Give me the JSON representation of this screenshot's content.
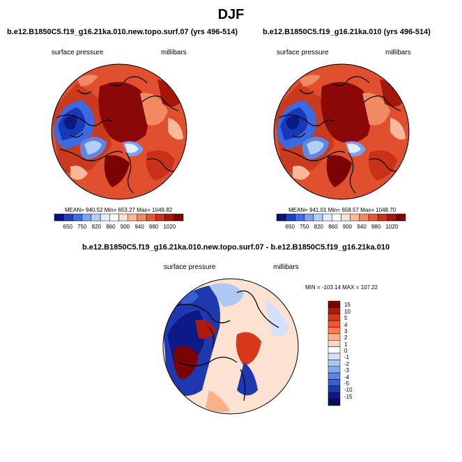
{
  "page": {
    "title": "DJF"
  },
  "panels": [
    {
      "title": "b.e12.B1850C5.f19_g16.21ka.010.new.topo.surf.07 (yrs 496-514)",
      "left_label": "surface pressure",
      "right_label": "millibars",
      "stats": "MEAN= 940.52  Min= 653.27  Max= 1049.82"
    },
    {
      "title": "b.e12.B1850C5.f19_g16.21ka.010 (yrs 496-514)",
      "left_label": "surface pressure",
      "right_label": "millibars",
      "stats": "MEAN= 941.01  Min= 658.57  Max= 1048.70"
    },
    {
      "title": "b.e12.B1850C5.f19_g16.21ka.010.new.topo.surf.07 - b.e12.B1850C5.f19_g16.21ka.010",
      "left_label": "surface pressure",
      "right_label": "millibars",
      "stats": "MIN = -103.14 MAX = 107.22"
    }
  ],
  "colorbar_top": {
    "labels": [
      "650",
      "750",
      "820",
      "860",
      "900",
      "940",
      "980",
      "1020"
    ],
    "colors": [
      "#08127a",
      "#1f3fbf",
      "#3f6fe0",
      "#7aa2ee",
      "#b4cdf6",
      "#e2ecfb",
      "#ffffff",
      "#fde2d2",
      "#f9b899",
      "#f08a62",
      "#e25a35",
      "#c9311a",
      "#a3160a",
      "#7a0303"
    ]
  },
  "colorbar_diff": {
    "labels": [
      "15",
      "10",
      "5",
      "4",
      "3",
      "2",
      "1",
      "0",
      "-1",
      "-2",
      "-3",
      "-4",
      "-5",
      "-10",
      "-15"
    ],
    "colors": [
      "#7a0303",
      "#b01a0c",
      "#d8381a",
      "#ef5a2c",
      "#f7824f",
      "#fbb08a",
      "#fdd6bf",
      "#ffffff",
      "#d3e2f8",
      "#adc8f3",
      "#86a9ec",
      "#5d85e2",
      "#3a5fd2",
      "#1e39b0",
      "#0c1a86",
      "#050e5e"
    ]
  }
}
